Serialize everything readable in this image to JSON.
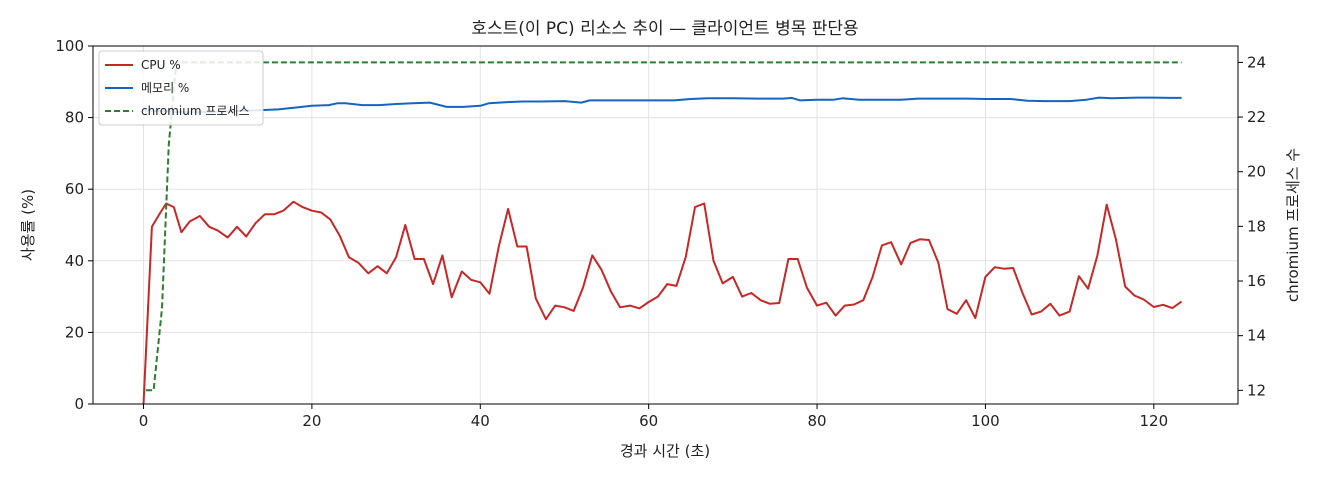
{
  "chart_data": {
    "type": "line",
    "title": "호스트(이 PC) 리소스 추이 — 클라이언트 병목 판단용",
    "xlabel": "경과 시간 (초)",
    "ylabel": "사용률 (%)",
    "y2label": "chromium 프로세스 수",
    "xlim": [
      -6,
      130
    ],
    "ylim": [
      0,
      100
    ],
    "y2lim": [
      11.5,
      24.6
    ],
    "xticks": [
      0,
      20,
      40,
      60,
      80,
      100,
      120
    ],
    "yticks": [
      0,
      20,
      40,
      60,
      80,
      100
    ],
    "y2ticks": [
      12,
      14,
      16,
      18,
      20,
      22,
      24
    ],
    "grid": true,
    "legend_position": "top-left",
    "series": [
      {
        "name": "CPU %",
        "color": "#c62828",
        "axis": "left",
        "style": "solid",
        "points": [
          [
            0,
            0
          ],
          [
            1,
            49.5
          ],
          [
            2,
            53.5
          ],
          [
            2.7,
            56
          ],
          [
            3.6,
            55
          ],
          [
            4.5,
            48
          ],
          [
            5.5,
            51
          ],
          [
            6.7,
            52.5
          ],
          [
            7.8,
            49.5
          ],
          [
            8.8,
            48.5
          ],
          [
            10,
            46.5
          ],
          [
            11.1,
            49.5
          ],
          [
            12.2,
            46.8
          ],
          [
            13.3,
            50.5
          ],
          [
            14.4,
            53
          ],
          [
            15.5,
            53
          ],
          [
            16.6,
            54
          ],
          [
            17.8,
            56.5
          ],
          [
            18.9,
            55
          ],
          [
            20,
            54
          ],
          [
            21.1,
            53.5
          ],
          [
            22.2,
            51.5
          ],
          [
            23.3,
            47
          ],
          [
            24.4,
            41
          ],
          [
            25.5,
            39.5
          ],
          [
            26.7,
            36.5
          ],
          [
            27.8,
            38.5
          ],
          [
            28.9,
            36.5
          ],
          [
            30,
            41
          ],
          [
            31.1,
            50
          ],
          [
            32.2,
            40.5
          ],
          [
            33.3,
            40.5
          ],
          [
            34.4,
            33.5
          ],
          [
            35.5,
            41.5
          ],
          [
            36.6,
            29.8
          ],
          [
            37.8,
            37
          ],
          [
            38.9,
            34.7
          ],
          [
            40,
            34
          ],
          [
            41.1,
            30.8
          ],
          [
            42.2,
            44
          ],
          [
            43.3,
            54.5
          ],
          [
            44.4,
            44
          ],
          [
            45.5,
            44
          ],
          [
            46.6,
            29.5
          ],
          [
            47.8,
            23.7
          ],
          [
            48.9,
            27.5
          ],
          [
            50,
            27
          ],
          [
            51.1,
            26
          ],
          [
            52.2,
            32.5
          ],
          [
            53.3,
            41.5
          ],
          [
            54.4,
            37.5
          ],
          [
            55.5,
            31.5
          ],
          [
            56.6,
            27
          ],
          [
            57.8,
            27.5
          ],
          [
            58.9,
            26.7
          ],
          [
            60,
            28.5
          ],
          [
            61.1,
            30
          ],
          [
            62.2,
            33.5
          ],
          [
            63.3,
            33
          ],
          [
            64.4,
            41
          ],
          [
            65.5,
            55
          ],
          [
            66.6,
            56
          ],
          [
            67.7,
            40
          ],
          [
            68.8,
            33.7
          ],
          [
            70,
            35.5
          ],
          [
            71.1,
            30
          ],
          [
            72.2,
            31
          ],
          [
            73.3,
            29
          ],
          [
            74.4,
            28
          ],
          [
            75.5,
            28.2
          ],
          [
            76.6,
            40.5
          ],
          [
            77.7,
            40.5
          ],
          [
            78.8,
            32.5
          ],
          [
            80,
            27.5
          ],
          [
            81.1,
            28.3
          ],
          [
            82.2,
            24.7
          ],
          [
            83.3,
            27.5
          ],
          [
            84.4,
            27.8
          ],
          [
            85.5,
            29
          ],
          [
            86.6,
            35.5
          ],
          [
            87.7,
            44.3
          ],
          [
            88.8,
            45.2
          ],
          [
            90,
            39
          ],
          [
            91.1,
            45
          ],
          [
            92.2,
            46
          ],
          [
            93.3,
            45.8
          ],
          [
            94.4,
            39.5
          ],
          [
            95.5,
            26.5
          ],
          [
            96.6,
            25.2
          ],
          [
            97.7,
            29
          ],
          [
            98.8,
            24
          ],
          [
            100,
            35.5
          ],
          [
            101.1,
            38.2
          ],
          [
            102.2,
            37.8
          ],
          [
            103.3,
            38
          ],
          [
            104.4,
            31
          ],
          [
            105.5,
            25
          ],
          [
            106.6,
            25.8
          ],
          [
            107.7,
            28
          ],
          [
            108.8,
            24.7
          ],
          [
            110,
            25.8
          ],
          [
            111.1,
            35.7
          ],
          [
            112.2,
            32.2
          ],
          [
            113.3,
            41.5
          ],
          [
            114.4,
            55.7
          ],
          [
            115.5,
            46
          ],
          [
            116.6,
            32.8
          ],
          [
            117.7,
            30.3
          ],
          [
            118.8,
            29.2
          ],
          [
            120,
            27.1
          ],
          [
            121.1,
            27.7
          ],
          [
            122.2,
            26.8
          ],
          [
            123.3,
            28.6
          ]
        ]
      },
      {
        "name": "메모리 %",
        "color": "#1565c0",
        "axis": "left",
        "style": "solid",
        "points": [
          [
            0,
            82
          ],
          [
            2,
            81.8
          ],
          [
            4,
            81.6
          ],
          [
            6,
            81.5
          ],
          [
            8,
            81.6
          ],
          [
            10,
            81.8
          ],
          [
            12,
            81.9
          ],
          [
            14,
            82.1
          ],
          [
            16,
            82.3
          ],
          [
            18,
            82.8
          ],
          [
            20,
            83.3
          ],
          [
            22,
            83.5
          ],
          [
            23,
            84
          ],
          [
            24,
            84
          ],
          [
            26,
            83.5
          ],
          [
            28,
            83.5
          ],
          [
            30,
            83.8
          ],
          [
            32,
            84
          ],
          [
            34,
            84.2
          ],
          [
            36,
            83
          ],
          [
            38,
            83
          ],
          [
            40,
            83.3
          ],
          [
            41,
            84
          ],
          [
            43,
            84.3
          ],
          [
            45,
            84.5
          ],
          [
            47,
            84.5
          ],
          [
            50,
            84.6
          ],
          [
            52,
            84.2
          ],
          [
            53,
            84.8
          ],
          [
            55,
            84.8
          ],
          [
            58,
            84.8
          ],
          [
            60,
            84.8
          ],
          [
            63,
            84.8
          ],
          [
            65,
            85.2
          ],
          [
            67,
            85.4
          ],
          [
            70,
            85.4
          ],
          [
            73,
            85.3
          ],
          [
            76,
            85.3
          ],
          [
            77,
            85.5
          ],
          [
            78,
            84.8
          ],
          [
            80,
            85
          ],
          [
            82,
            85
          ],
          [
            83,
            85.4
          ],
          [
            85,
            85
          ],
          [
            87,
            85
          ],
          [
            90,
            85
          ],
          [
            92,
            85.3
          ],
          [
            95,
            85.3
          ],
          [
            98,
            85.3
          ],
          [
            100,
            85.2
          ],
          [
            103,
            85.2
          ],
          [
            105,
            84.7
          ],
          [
            107,
            84.6
          ],
          [
            110,
            84.6
          ],
          [
            112,
            85
          ],
          [
            113.5,
            85.6
          ],
          [
            115,
            85.4
          ],
          [
            118,
            85.6
          ],
          [
            120,
            85.6
          ],
          [
            122,
            85.5
          ],
          [
            123.3,
            85.5
          ]
        ]
      },
      {
        "name": "chromium 프로세스",
        "color": "#2e7d32",
        "axis": "right",
        "style": "dashed",
        "points": [
          [
            0.3,
            12
          ],
          [
            1.2,
            12
          ],
          [
            2.2,
            15
          ],
          [
            3,
            21
          ],
          [
            3.9,
            24
          ],
          [
            123.3,
            24
          ]
        ]
      }
    ]
  }
}
